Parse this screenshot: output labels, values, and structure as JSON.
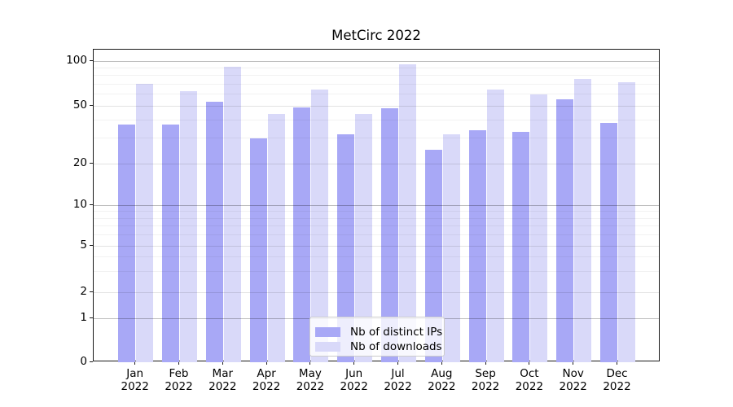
{
  "title": "MetCirc 2022",
  "chart_data": {
    "type": "bar",
    "title": "MetCirc 2022",
    "yscale": "symlog",
    "grid": "both",
    "y_ticks": [
      0,
      1,
      2,
      5,
      10,
      20,
      50,
      100
    ],
    "ylim": [
      0,
      120
    ],
    "legend_position": "lower center",
    "categories": [
      "Jan 2022",
      "Feb 2022",
      "Mar 2022",
      "Apr 2022",
      "May 2022",
      "Jun 2022",
      "Jul 2022",
      "Aug 2022",
      "Sep 2022",
      "Oct 2022",
      "Nov 2022",
      "Dec 2022"
    ],
    "series": [
      {
        "name": "Nb of distinct IPs",
        "color": "#a8a8f6",
        "values": [
          37,
          37,
          53,
          30,
          49,
          32,
          48,
          25,
          34,
          33,
          55,
          38
        ]
      },
      {
        "name": "Nb of downloads",
        "color": "#d9d9f9",
        "values": [
          70,
          63,
          92,
          44,
          64,
          44,
          95,
          32,
          64,
          60,
          76,
          72
        ]
      }
    ]
  }
}
